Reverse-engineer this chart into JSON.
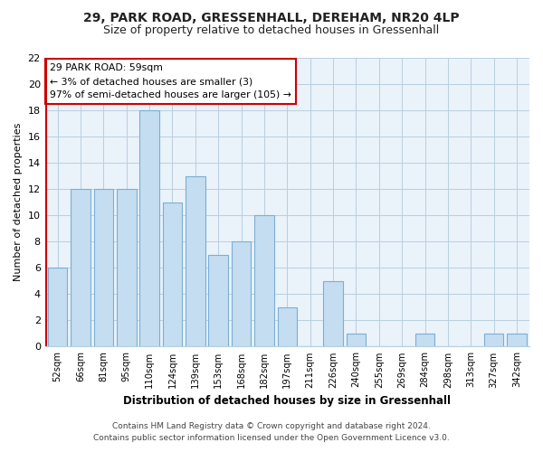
{
  "title_line1": "29, PARK ROAD, GRESSENHALL, DEREHAM, NR20 4LP",
  "title_line2": "Size of property relative to detached houses in Gressenhall",
  "xlabel": "Distribution of detached houses by size in Gressenhall",
  "ylabel": "Number of detached properties",
  "bin_labels": [
    "52sqm",
    "66sqm",
    "81sqm",
    "95sqm",
    "110sqm",
    "124sqm",
    "139sqm",
    "153sqm",
    "168sqm",
    "182sqm",
    "197sqm",
    "211sqm",
    "226sqm",
    "240sqm",
    "255sqm",
    "269sqm",
    "284sqm",
    "298sqm",
    "313sqm",
    "327sqm",
    "342sqm"
  ],
  "bar_values": [
    6,
    12,
    12,
    12,
    18,
    11,
    13,
    7,
    8,
    10,
    3,
    0,
    5,
    1,
    0,
    0,
    1,
    0,
    0,
    1,
    1
  ],
  "bar_color": "#c5ddf0",
  "bar_edge_color": "#7aafd4",
  "red_line_color": "#cc0000",
  "ylim": [
    0,
    22
  ],
  "yticks": [
    0,
    2,
    4,
    6,
    8,
    10,
    12,
    14,
    16,
    18,
    20,
    22
  ],
  "annotation_box_text": "29 PARK ROAD: 59sqm\n← 3% of detached houses are smaller (3)\n97% of semi-detached houses are larger (105) →",
  "footer_line1": "Contains HM Land Registry data © Crown copyright and database right 2024.",
  "footer_line2": "Contains public sector information licensed under the Open Government Licence v3.0.",
  "bg_color": "#ffffff",
  "plot_bg_color": "#eaf2fa",
  "grid_color": "#b8cfe0",
  "title_fontsize": 10,
  "subtitle_fontsize": 9
}
